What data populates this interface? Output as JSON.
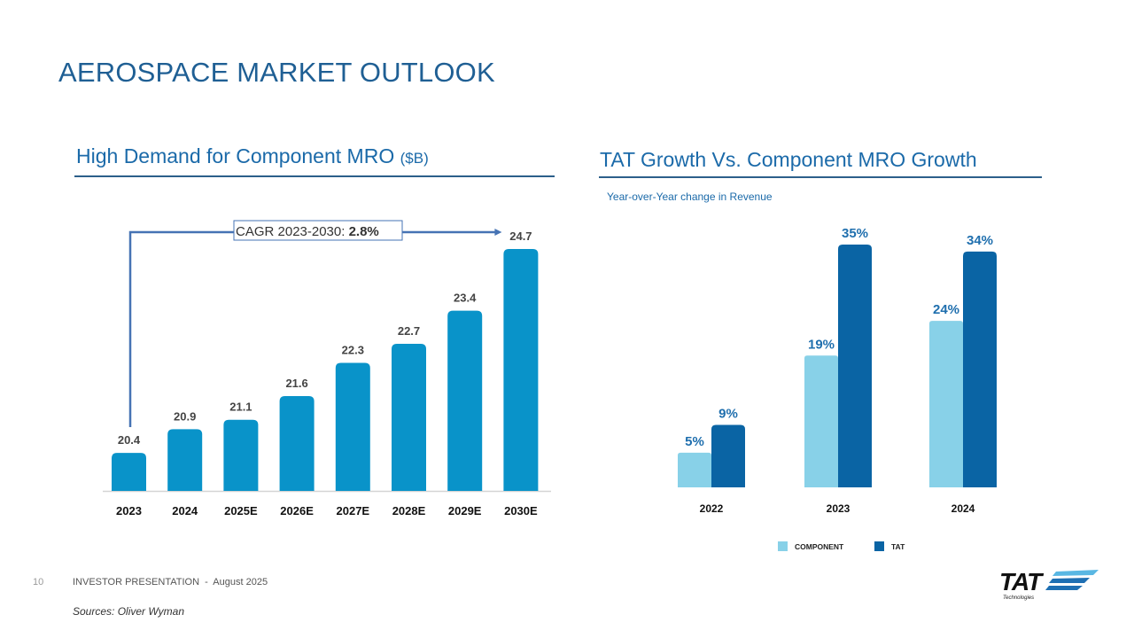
{
  "page": {
    "title": "AEROSPACE MARKET OUTLOOK",
    "number": "10",
    "footer": "INVESTOR PRESENTATION  -  August 2025",
    "sources": "Sources: Oliver Wyman",
    "logo": {
      "name": "TAT",
      "subtext": "Technologies",
      "colors": {
        "text": "#111111",
        "stripe_light": "#59b7e3",
        "stripe_dark": "#1e6fb3"
      }
    }
  },
  "left_panel": {
    "title": "High Demand for Component MRO",
    "unit": "($B)"
  },
  "right_panel": {
    "title": "TAT Growth Vs. Component MRO Growth",
    "subtitle": "Year-over-Year change in Revenue"
  },
  "chart_data": [
    {
      "type": "bar",
      "title": "High Demand for Component MRO ($B)",
      "categories": [
        "2023",
        "2024",
        "2025E",
        "2026E",
        "2027E",
        "2028E",
        "2029E",
        "2030E"
      ],
      "values": [
        20.4,
        20.9,
        21.1,
        21.6,
        22.3,
        22.7,
        23.4,
        24.7
      ],
      "labels": [
        "20.4",
        "20.9",
        "21.1",
        "21.6",
        "22.3",
        "22.7",
        "23.4",
        "24.7"
      ],
      "xlabel": "",
      "ylabel": "",
      "ylim": [
        19.6,
        24.7
      ],
      "grid": false,
      "color": "#0993c9",
      "annotation": {
        "prefix": "CAGR 2023-2030: ",
        "value": "2.8%",
        "from": "2023",
        "to": "2030E"
      }
    },
    {
      "type": "bar",
      "title": "TAT Growth Vs. Component MRO Growth",
      "subtitle": "Year-over-Year change in Revenue",
      "categories": [
        "2022",
        "2023",
        "2024"
      ],
      "series": [
        {
          "name": "COMPONENT",
          "values": [
            5,
            19,
            24
          ],
          "labels": [
            "5%",
            "19%",
            "24%"
          ],
          "color": "#88d1e8"
        },
        {
          "name": "TAT",
          "values": [
            9,
            35,
            34
          ],
          "labels": [
            "9%",
            "35%",
            "34%"
          ],
          "color": "#0a64a4"
        }
      ],
      "ylim": [
        0,
        35
      ],
      "grid": false,
      "legend": "bottom",
      "label_color": "#1f6fae"
    }
  ]
}
